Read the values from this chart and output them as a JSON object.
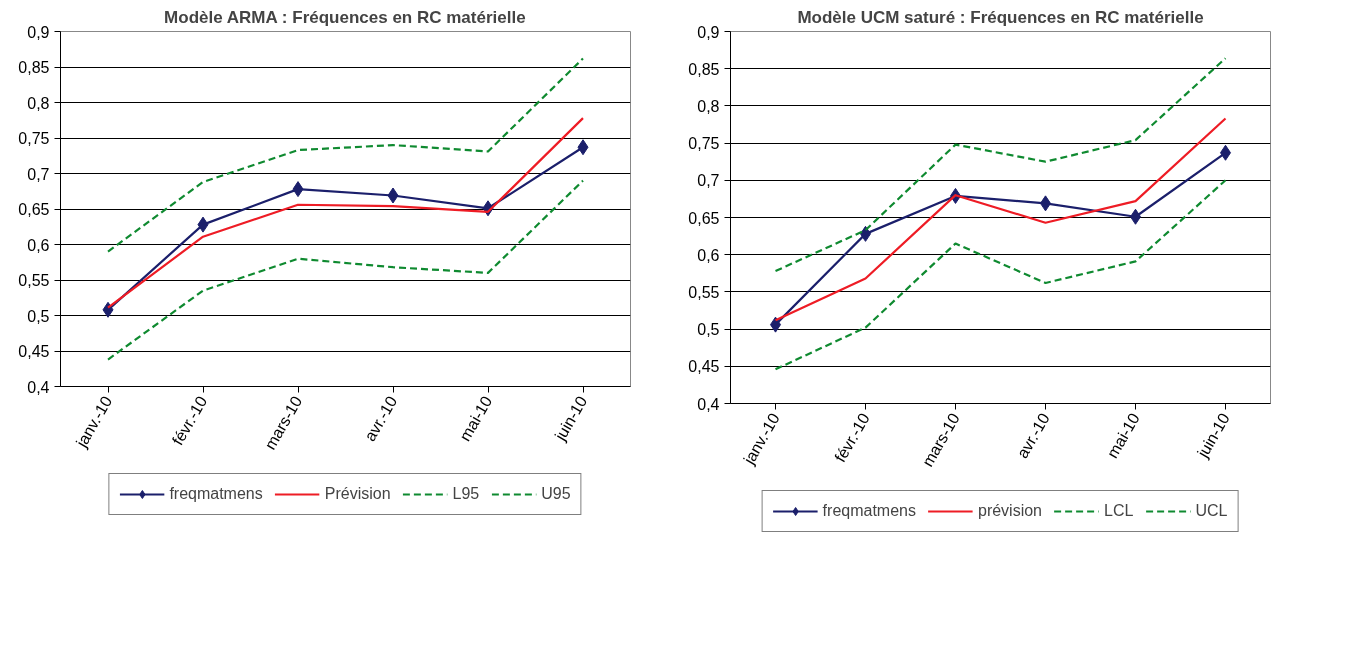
{
  "chart_data": [
    {
      "type": "line",
      "title": "Modèle ARMA : Fréquences en RC matérielle",
      "categories": [
        "janv.-10",
        "févr.-10",
        "mars-10",
        "avr.-10",
        "mai-10",
        "juin-10"
      ],
      "series": [
        {
          "name": "freqmatmens",
          "color": "#1b1f6b",
          "marker": "diamond",
          "line_style": "solid",
          "values": [
            0.508,
            0.628,
            0.678,
            0.669,
            0.651,
            0.737
          ]
        },
        {
          "name": "Prévision",
          "color": "#ee1c25",
          "marker": "none",
          "line_style": "solid",
          "values": [
            0.511,
            0.611,
            0.656,
            0.654,
            0.646,
            0.778
          ]
        },
        {
          "name": "L95",
          "color": "#0f8a30",
          "marker": "none",
          "line_style": "dashed",
          "values": [
            0.438,
            0.535,
            0.58,
            0.568,
            0.56,
            0.69
          ]
        },
        {
          "name": "U95",
          "color": "#0f8a30",
          "marker": "none",
          "line_style": "dashed",
          "values": [
            0.59,
            0.688,
            0.733,
            0.74,
            0.731,
            0.862
          ]
        }
      ],
      "ylim": [
        0.4,
        0.9
      ],
      "yticks": [
        {
          "value": 0.4,
          "label": "0,4"
        },
        {
          "value": 0.45,
          "label": "0,45"
        },
        {
          "value": 0.5,
          "label": "0,5"
        },
        {
          "value": 0.55,
          "label": "0,55"
        },
        {
          "value": 0.6,
          "label": "0,6"
        },
        {
          "value": 0.65,
          "label": "0,65"
        },
        {
          "value": 0.7,
          "label": "0,7"
        },
        {
          "value": 0.75,
          "label": "0,75"
        },
        {
          "value": 0.8,
          "label": "0,8"
        },
        {
          "value": 0.85,
          "label": "0,85"
        },
        {
          "value": 0.9,
          "label": "0,9"
        }
      ],
      "grid": "y",
      "legend": "bottom"
    },
    {
      "type": "line",
      "title": "Modèle UCM saturé : Fréquences en RC matérielle",
      "categories": [
        "janv.-10",
        "févr.-10",
        "mars-10",
        "avr.-10",
        "mai-10",
        "juin-10"
      ],
      "series": [
        {
          "name": "freqmatmens",
          "color": "#1b1f6b",
          "marker": "diamond",
          "line_style": "solid",
          "values": [
            0.506,
            0.628,
            0.679,
            0.669,
            0.651,
            0.737
          ]
        },
        {
          "name": "prévision",
          "color": "#ee1c25",
          "marker": "none",
          "line_style": "solid",
          "values": [
            0.512,
            0.568,
            0.68,
            0.643,
            0.672,
            0.783
          ]
        },
        {
          "name": "LCL",
          "color": "#0f8a30",
          "marker": "none",
          "line_style": "dashed",
          "values": [
            0.446,
            0.502,
            0.615,
            0.562,
            0.591,
            0.7
          ]
        },
        {
          "name": "UCL",
          "color": "#0f8a30",
          "marker": "none",
          "line_style": "dashed",
          "values": [
            0.578,
            0.633,
            0.748,
            0.725,
            0.754,
            0.864
          ]
        }
      ],
      "ylim": [
        0.4,
        0.9
      ],
      "yticks": [
        {
          "value": 0.4,
          "label": "0,4"
        },
        {
          "value": 0.45,
          "label": "0,45"
        },
        {
          "value": 0.5,
          "label": "0,5"
        },
        {
          "value": 0.55,
          "label": "0,55"
        },
        {
          "value": 0.6,
          "label": "0,6"
        },
        {
          "value": 0.65,
          "label": "0,65"
        },
        {
          "value": 0.7,
          "label": "0,7"
        },
        {
          "value": 0.75,
          "label": "0,75"
        },
        {
          "value": 0.8,
          "label": "0,8"
        },
        {
          "value": 0.85,
          "label": "0,85"
        },
        {
          "value": 0.9,
          "label": "0,9"
        }
      ],
      "grid": "y",
      "legend": "bottom"
    }
  ]
}
